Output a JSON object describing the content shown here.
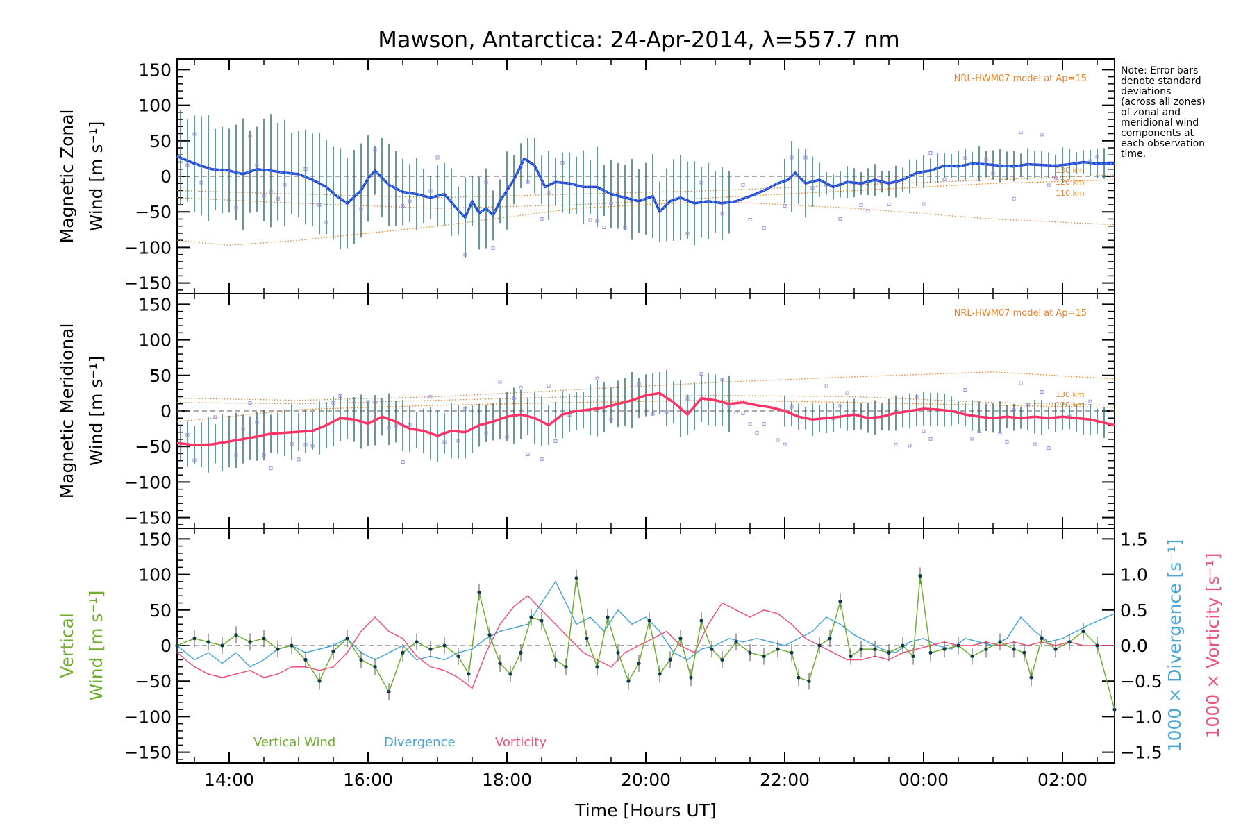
{
  "chart_data": {
    "title": "Mawson, Antarctica: 24-Apr-2014, λ=557.7 nm",
    "xlabel": "Time [Hours UT]",
    "x_tick_labels": [
      "14:00",
      "16:00",
      "18:00",
      "20:00",
      "22:00",
      "00:00",
      "02:00"
    ],
    "x_range_hours": [
      13.25,
      26.75
    ],
    "note": [
      "Note: Error bars",
      "denote standard",
      "deviations",
      "(across all zones)",
      "of zonal and",
      "meridional wind",
      "components at",
      "each observation",
      "time."
    ],
    "colors": {
      "zonal": "#2a44d6",
      "zonal_highlight": "#3fa7e8",
      "meridional": "#ff3366",
      "vertical": "#6fae2e",
      "divergence": "#4aa6d8",
      "vorticity": "#f0507a",
      "model": "#e8822a",
      "zone_points": "#9a8ee0",
      "error_bars": "#1e6e6e",
      "dots": "#0e3a4a"
    },
    "panels": [
      {
        "id": "zonal",
        "type": "line",
        "ylabel_line1": "Magnetic Zonal",
        "ylabel_line2": "Wind [m s⁻¹]",
        "y_ticks": [
          "150",
          "100",
          "50",
          "0",
          "−50",
          "−100",
          "−150"
        ],
        "ylim": [
          -165,
          165
        ],
        "model_label": "NRL-HWM07 model at Ap=15",
        "altitudes": [
          "130 km",
          "120 km",
          "110 km"
        ],
        "series": [
          {
            "name": "Magnetic Zonal Wind",
            "x": [
              13.25,
              13.5,
              13.75,
              14.0,
              14.2,
              14.4,
              14.6,
              14.8,
              15.0,
              15.2,
              15.4,
              15.55,
              15.7,
              15.9,
              16.0,
              16.1,
              16.3,
              16.5,
              16.7,
              16.9,
              17.1,
              17.3,
              17.4,
              17.5,
              17.6,
              17.7,
              17.8,
              17.9,
              18.0,
              18.1,
              18.25,
              18.4,
              18.55,
              18.7,
              18.9,
              19.1,
              19.3,
              19.5,
              19.7,
              19.9,
              20.1,
              20.2,
              20.35,
              20.5,
              20.7,
              20.9,
              21.1,
              21.3,
              21.5,
              21.7,
              21.9,
              22.05,
              22.15,
              22.3,
              22.5,
              22.7,
              22.9,
              23.1,
              23.3,
              23.5,
              23.7,
              23.9,
              24.1,
              24.3,
              24.5,
              24.7,
              24.9,
              25.1,
              25.3,
              25.5,
              25.7,
              25.9,
              26.1,
              26.3,
              26.5,
              26.75
            ],
            "y": [
              28,
              18,
              10,
              8,
              3,
              10,
              8,
              5,
              3,
              -5,
              -15,
              -28,
              -38,
              -20,
              -3,
              8,
              -12,
              -22,
              -25,
              -30,
              -25,
              -48,
              -58,
              -35,
              -52,
              -45,
              -55,
              -35,
              -20,
              -5,
              25,
              15,
              -15,
              -8,
              -10,
              -15,
              -15,
              -25,
              -30,
              -35,
              -28,
              -50,
              -35,
              -30,
              -38,
              -35,
              -38,
              -35,
              -28,
              -20,
              -10,
              -5,
              5,
              -10,
              -5,
              -15,
              -8,
              -10,
              -5,
              -10,
              -5,
              5,
              8,
              15,
              14,
              18,
              17,
              15,
              14,
              17,
              16,
              15,
              17,
              20,
              18,
              18
            ]
          }
        ],
        "zero_line": true
      },
      {
        "id": "meridional",
        "type": "line",
        "ylabel_line1": "Magnetic Meridional",
        "ylabel_line2": "Wind [m s⁻¹]",
        "y_ticks": [
          "150",
          "100",
          "50",
          "0",
          "−50",
          "−100",
          "−150"
        ],
        "ylim": [
          -165,
          165
        ],
        "model_label": "NRL-HWM07 model at Ap=15",
        "altitudes": [
          "130 km",
          "120 km"
        ],
        "series": [
          {
            "name": "Magnetic Meridional Wind",
            "x": [
              13.25,
              13.5,
              13.75,
              14.0,
              14.3,
              14.6,
              14.9,
              15.2,
              15.4,
              15.6,
              15.8,
              16.0,
              16.2,
              16.4,
              16.6,
              16.8,
              17.0,
              17.2,
              17.4,
              17.6,
              17.8,
              18.0,
              18.2,
              18.4,
              18.6,
              18.8,
              19.0,
              19.2,
              19.4,
              19.6,
              19.8,
              20.0,
              20.2,
              20.4,
              20.6,
              20.8,
              21.0,
              21.2,
              21.4,
              21.6,
              21.8,
              22.0,
              22.2,
              22.4,
              22.6,
              22.8,
              23.0,
              23.2,
              23.4,
              23.6,
              23.8,
              24.0,
              24.2,
              24.4,
              24.6,
              24.8,
              25.0,
              25.2,
              25.4,
              25.6,
              25.8,
              26.0,
              26.2,
              26.4,
              26.75
            ],
            "y": [
              -45,
              -48,
              -47,
              -43,
              -38,
              -32,
              -30,
              -28,
              -20,
              -10,
              -12,
              -18,
              -8,
              -15,
              -25,
              -28,
              -35,
              -28,
              -30,
              -20,
              -15,
              -8,
              -5,
              -10,
              -20,
              -5,
              0,
              2,
              5,
              10,
              15,
              22,
              25,
              12,
              -5,
              18,
              15,
              10,
              12,
              8,
              5,
              0,
              -8,
              -12,
              -10,
              -8,
              -5,
              -10,
              -8,
              -3,
              0,
              3,
              2,
              0,
              -5,
              -8,
              -10,
              -8,
              -10,
              -8,
              -10,
              -8,
              -10,
              -12,
              -20
            ]
          }
        ],
        "zero_line": true
      },
      {
        "id": "vertical",
        "type": "line",
        "ylabel_line1": "Vertical",
        "ylabel_line2": "Wind [m s⁻¹]",
        "y_ticks": [
          "150",
          "100",
          "50",
          "0",
          "−50",
          "−100",
          "−150"
        ],
        "ylim": [
          -165,
          165
        ],
        "right_axis": {
          "ticks": [
            "1.5",
            "1.0",
            "0.5",
            "0.0",
            "−0.5",
            "−1.0",
            "−1.5"
          ],
          "ylim": [
            -1.65,
            1.65
          ],
          "label_divergence": "1000 × Divergence [s⁻¹]",
          "label_vorticity": "1000 × Vorticity [s⁻¹]"
        },
        "legend": [
          "Vertical Wind",
          "Divergence",
          "Vorticity"
        ],
        "series": [
          {
            "name": "Vertical Wind",
            "x": [
              13.25,
              13.5,
              13.7,
              13.9,
              14.1,
              14.3,
              14.5,
              14.7,
              14.9,
              15.1,
              15.3,
              15.5,
              15.7,
              15.9,
              16.1,
              16.3,
              16.5,
              16.7,
              16.9,
              17.1,
              17.3,
              17.45,
              17.6,
              17.75,
              17.9,
              18.05,
              18.2,
              18.35,
              18.5,
              18.7,
              18.85,
              19.0,
              19.15,
              19.3,
              19.45,
              19.6,
              19.75,
              19.9,
              20.05,
              20.2,
              20.35,
              20.5,
              20.65,
              20.8,
              20.95,
              21.1,
              21.3,
              21.5,
              21.7,
              21.9,
              22.1,
              22.2,
              22.35,
              22.5,
              22.65,
              22.8,
              22.95,
              23.1,
              23.3,
              23.5,
              23.7,
              23.85,
              23.95,
              24.1,
              24.3,
              24.5,
              24.7,
              24.9,
              25.1,
              25.3,
              25.45,
              25.55,
              25.7,
              25.9,
              26.1,
              26.3,
              26.5,
              26.75
            ],
            "y": [
              0,
              10,
              5,
              0,
              15,
              5,
              10,
              -5,
              0,
              -20,
              -50,
              -8,
              10,
              -20,
              -30,
              -65,
              -10,
              5,
              -5,
              0,
              -15,
              -40,
              75,
              15,
              -25,
              -40,
              -10,
              40,
              35,
              -20,
              -30,
              95,
              10,
              -30,
              40,
              -10,
              -50,
              -25,
              35,
              -40,
              -20,
              10,
              -45,
              35,
              -5,
              -20,
              5,
              -10,
              -15,
              -5,
              -10,
              -45,
              -50,
              0,
              10,
              62,
              -15,
              -5,
              -5,
              -10,
              0,
              -15,
              98,
              -10,
              -5,
              0,
              -15,
              -5,
              5,
              -5,
              -10,
              -45,
              10,
              -5,
              5,
              20,
              0,
              -90
            ]
          },
          {
            "name": "Divergence",
            "x": [
              13.25,
              13.5,
              13.7,
              13.9,
              14.1,
              14.3,
              14.5,
              14.7,
              14.9,
              15.1,
              15.3,
              15.5,
              15.7,
              15.9,
              16.1,
              16.3,
              16.5,
              16.7,
              16.9,
              17.1,
              17.3,
              17.5,
              17.7,
              17.9,
              18.1,
              18.3,
              18.5,
              18.7,
              18.85,
              19.0,
              19.2,
              19.4,
              19.6,
              19.8,
              20.0,
              20.2,
              20.4,
              20.6,
              20.8,
              21.0,
              21.2,
              21.4,
              21.6,
              21.8,
              22.0,
              22.2,
              22.4,
              22.6,
              22.8,
              23.0,
              23.2,
              23.4,
              23.6,
              23.8,
              24.0,
              24.2,
              24.4,
              24.6,
              24.8,
              25.0,
              25.2,
              25.4,
              25.6,
              25.8,
              26.0,
              26.2,
              26.4,
              26.75
            ],
            "y": [
              0.0,
              -0.2,
              -0.1,
              -0.25,
              -0.1,
              -0.3,
              -0.2,
              -0.05,
              0.0,
              -0.1,
              -0.05,
              0.0,
              0.1,
              -0.1,
              -0.2,
              -0.1,
              0.0,
              -0.2,
              -0.15,
              -0.2,
              -0.1,
              -0.05,
              0.1,
              0.2,
              0.25,
              0.3,
              0.6,
              0.9,
              0.6,
              0.3,
              0.4,
              0.2,
              0.5,
              0.3,
              0.4,
              0.2,
              -0.1,
              -0.2,
              -0.05,
              0.0,
              0.1,
              0.05,
              0.1,
              0.05,
              0.0,
              0.1,
              0.2,
              0.4,
              0.3,
              0.15,
              0.05,
              -0.05,
              -0.1,
              0.05,
              0.1,
              0.0,
              -0.05,
              0.1,
              0.05,
              0.0,
              0.1,
              0.4,
              0.2,
              0.05,
              0.1,
              0.2,
              0.3,
              0.45
            ]
          },
          {
            "name": "Vorticity",
            "x": [
              13.25,
              13.5,
              13.7,
              13.9,
              14.1,
              14.3,
              14.5,
              14.7,
              14.9,
              15.1,
              15.3,
              15.5,
              15.7,
              15.9,
              16.1,
              16.3,
              16.5,
              16.7,
              16.9,
              17.1,
              17.3,
              17.5,
              17.7,
              17.9,
              18.1,
              18.3,
              18.5,
              18.7,
              18.9,
              19.1,
              19.3,
              19.5,
              19.7,
              19.9,
              20.1,
              20.3,
              20.5,
              20.7,
              20.9,
              21.1,
              21.3,
              21.5,
              21.7,
              21.9,
              22.1,
              22.3,
              22.5,
              22.7,
              22.9,
              23.1,
              23.3,
              23.5,
              23.7,
              23.9,
              24.1,
              24.3,
              24.5,
              24.7,
              24.9,
              25.1,
              25.3,
              25.5,
              25.7,
              25.9,
              26.1,
              26.3,
              26.5,
              26.75
            ],
            "y": [
              -0.1,
              -0.3,
              -0.4,
              -0.45,
              -0.4,
              -0.35,
              -0.45,
              -0.4,
              -0.3,
              -0.3,
              -0.35,
              -0.3,
              -0.1,
              0.2,
              0.4,
              0.2,
              0.1,
              -0.15,
              -0.3,
              -0.35,
              -0.45,
              -0.6,
              -0.1,
              0.3,
              0.55,
              0.7,
              0.5,
              0.3,
              0.1,
              -0.1,
              -0.2,
              -0.3,
              -0.1,
              0.0,
              0.1,
              0.2,
              0.0,
              -0.1,
              0.3,
              0.6,
              0.5,
              0.4,
              0.5,
              0.45,
              0.3,
              0.1,
              0.0,
              -0.1,
              -0.2,
              -0.2,
              -0.15,
              -0.2,
              -0.1,
              -0.05,
              0.0,
              0.05,
              0.0,
              0.0,
              0.05,
              0.0,
              0.05,
              0.0,
              0.05,
              0.0,
              0.05,
              0.0,
              0.0,
              0.0
            ]
          }
        ],
        "zero_line": true
      }
    ]
  }
}
